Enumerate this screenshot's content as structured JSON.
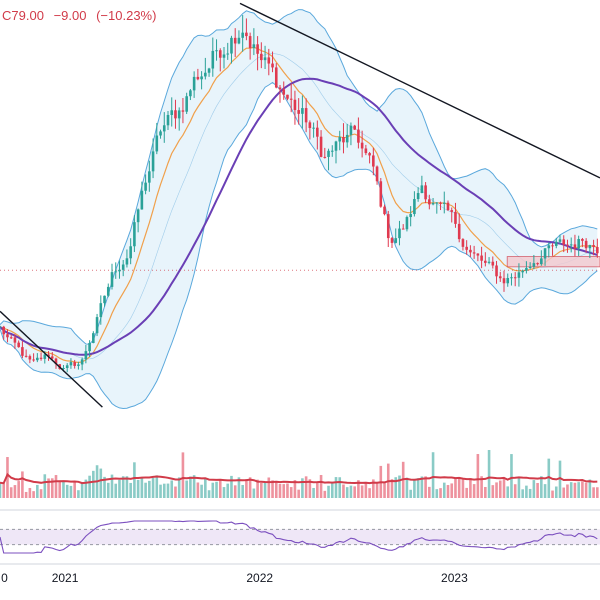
{
  "header": {
    "close_label": "C",
    "close_value": "79.00",
    "change": "−9.00",
    "change_pct": "(−10.23%)",
    "color": "#d13b49"
  },
  "colors": {
    "up": "#2aa198",
    "down": "#e0394f",
    "bb_band": "#5aa8dc",
    "bb_fill": "#e8f4fb",
    "ema_fast": "#f0a04b",
    "sma_slow": "#6a3fb5",
    "trendline": "#131722",
    "volume_ma": "#d13b49",
    "rsi_line": "#7b4fbf",
    "rsi_band": "#efe7f7",
    "price_line": "#d13b49",
    "zone": "#f4c9cf"
  },
  "chart_data": {
    "type": "candlestick",
    "x_range": [
      "2020-09",
      "2023-10"
    ],
    "y_range": [
      25,
      158
    ],
    "x_axis_labels": [
      "0",
      "2021",
      "2022",
      "2023"
    ],
    "last_close": 79.0,
    "price_anchors": [
      [
        "2020-09-01",
        62
      ],
      [
        "2020-10-01",
        56
      ],
      [
        "2020-11-01",
        51
      ],
      [
        "2020-12-01",
        54
      ],
      [
        "2021-01-01",
        50
      ],
      [
        "2021-02-01",
        52
      ],
      [
        "2021-03-01",
        64
      ],
      [
        "2021-04-01",
        78
      ],
      [
        "2021-05-01",
        85
      ],
      [
        "2021-06-01",
        105
      ],
      [
        "2021-07-01",
        120
      ],
      [
        "2021-08-01",
        125
      ],
      [
        "2021-09-01",
        135
      ],
      [
        "2021-10-01",
        140
      ],
      [
        "2021-11-01",
        147
      ],
      [
        "2021-12-01",
        153
      ],
      [
        "2022-01-01",
        141
      ],
      [
        "2022-02-01",
        134
      ],
      [
        "2022-03-01",
        128
      ],
      [
        "2022-04-01",
        122
      ],
      [
        "2022-05-01",
        112
      ],
      [
        "2022-06-01",
        116
      ],
      [
        "2022-07-01",
        118
      ],
      [
        "2022-08-01",
        108
      ],
      [
        "2022-09-01",
        88
      ],
      [
        "2022-10-01",
        92
      ],
      [
        "2022-11-01",
        104
      ],
      [
        "2022-12-01",
        97
      ],
      [
        "2023-01-01",
        92
      ],
      [
        "2023-02-01",
        84
      ],
      [
        "2023-03-01",
        80
      ],
      [
        "2023-04-01",
        76
      ],
      [
        "2023-05-01",
        78
      ],
      [
        "2023-06-01",
        83
      ],
      [
        "2023-07-01",
        85
      ],
      [
        "2023-08-01",
        86
      ],
      [
        "2023-09-01",
        88
      ],
      [
        "2023-10-01",
        86
      ]
    ],
    "trendlines": [
      {
        "from": [
          "2020-09-01",
          67
        ],
        "to": [
          "2021-03-12",
          39
        ]
      },
      {
        "from": [
          "2021-11-25",
          157
        ],
        "to": [
          "2023-10-01",
          106
        ]
      }
    ],
    "support_zone": {
      "from": "2023-04-10",
      "to": "2023-10-01",
      "low": 80,
      "high": 83
    },
    "indicators": [
      "bollinger_bands",
      "ema_fast",
      "sma_slow",
      "volume",
      "rsi"
    ]
  }
}
